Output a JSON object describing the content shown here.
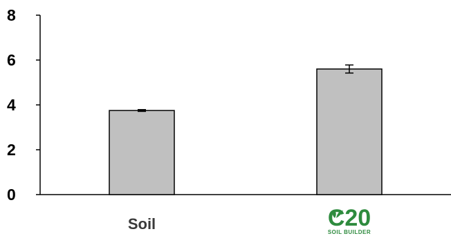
{
  "chart_data": {
    "type": "bar",
    "categories": [
      "Soil",
      "C20"
    ],
    "values": [
      3.75,
      5.6
    ],
    "errors": [
      0.04,
      0.18
    ],
    "ylim": [
      0,
      8
    ],
    "yticks": [
      "0",
      "2",
      "4",
      "6",
      "8"
    ],
    "bar_color": "#c0c0c0",
    "grid": false,
    "logo": {
      "main": "C20",
      "sub": "SOIL BUILDER",
      "color": "#2e8b3e"
    }
  }
}
